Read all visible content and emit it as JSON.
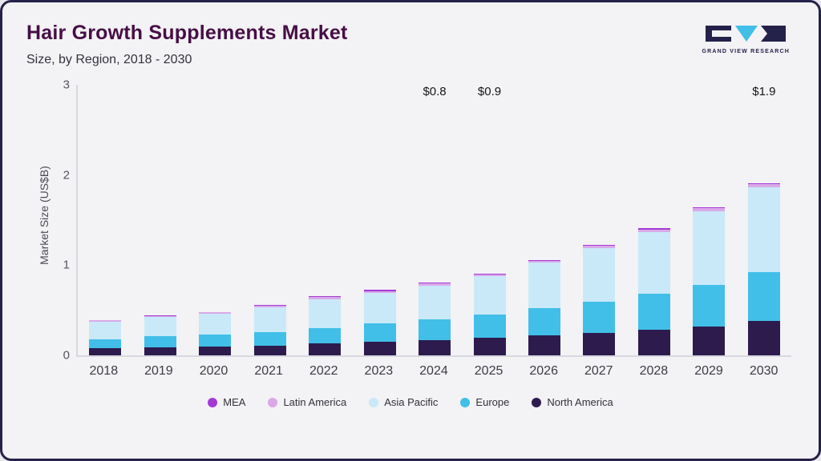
{
  "header": {
    "title": "Hair Growth Supplements Market",
    "subtitle": "Size, by Region, 2018 - 2030"
  },
  "logo": {
    "text": "GRAND VIEW RESEARCH"
  },
  "chart_data": {
    "type": "bar",
    "stacked": true,
    "title": "Hair Growth Supplements Market Size, by Region, 2018 - 2030",
    "xlabel": "",
    "ylabel": "Market Size (US$B)",
    "ylim": [
      0,
      3
    ],
    "yticks": [
      0,
      1,
      2,
      3
    ],
    "grid": false,
    "legend_position": "bottom",
    "categories": [
      "2018",
      "2019",
      "2020",
      "2021",
      "2022",
      "2023",
      "2024",
      "2025",
      "2026",
      "2027",
      "2028",
      "2029",
      "2030"
    ],
    "series": [
      {
        "name": "North America",
        "color": "#2d1b4e",
        "values": [
          0.08,
          0.09,
          0.1,
          0.11,
          0.13,
          0.15,
          0.17,
          0.19,
          0.22,
          0.25,
          0.28,
          0.32,
          0.38
        ]
      },
      {
        "name": "Europe",
        "color": "#41bfe8",
        "values": [
          0.1,
          0.12,
          0.13,
          0.15,
          0.17,
          0.2,
          0.23,
          0.26,
          0.3,
          0.34,
          0.4,
          0.46,
          0.54
        ]
      },
      {
        "name": "Asia Pacific",
        "color": "#c9e9f9",
        "values": [
          0.19,
          0.21,
          0.23,
          0.27,
          0.32,
          0.34,
          0.37,
          0.42,
          0.5,
          0.59,
          0.68,
          0.81,
          0.93
        ]
      },
      {
        "name": "Latin America",
        "color": "#d9a9e8",
        "values": [
          0.015,
          0.015,
          0.015,
          0.02,
          0.02,
          0.02,
          0.02,
          0.02,
          0.02,
          0.03,
          0.03,
          0.03,
          0.04
        ]
      },
      {
        "name": "MEA",
        "color": "#a43ad6",
        "values": [
          0.005,
          0.005,
          0.005,
          0.01,
          0.01,
          0.01,
          0.01,
          0.01,
          0.01,
          0.01,
          0.01,
          0.01,
          0.01
        ]
      }
    ],
    "annotations": [
      {
        "category": "2024",
        "label": "$0.8"
      },
      {
        "category": "2025",
        "label": "$0.9"
      },
      {
        "category": "2030",
        "label": "$1.9"
      }
    ]
  }
}
